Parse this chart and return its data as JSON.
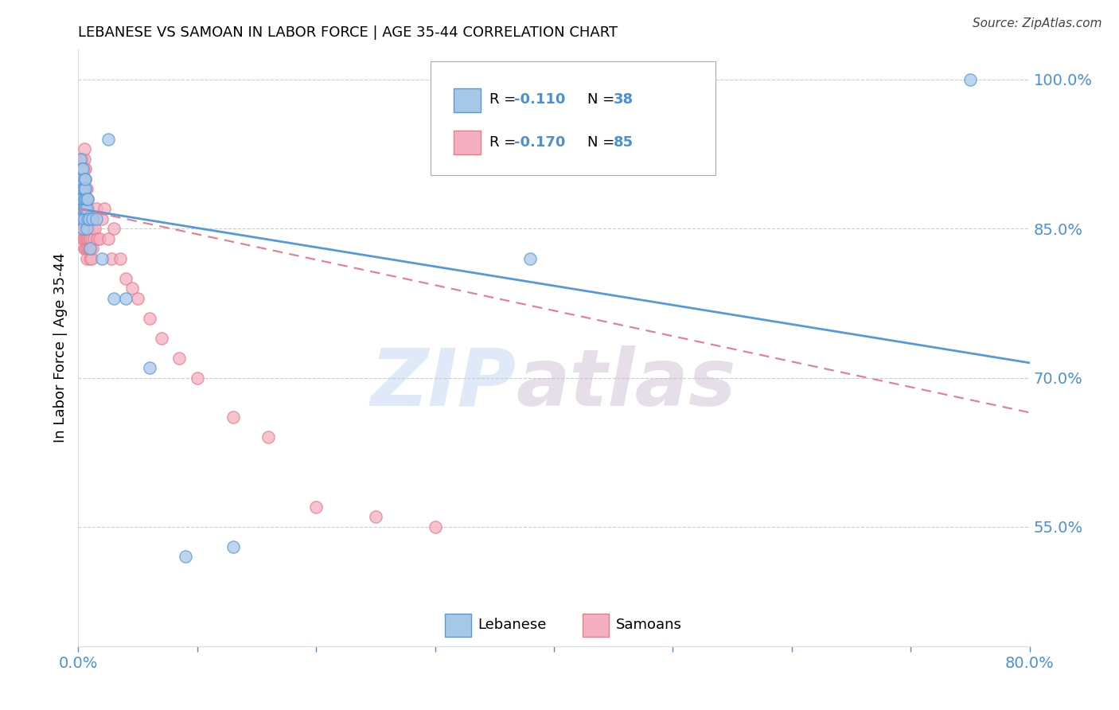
{
  "title": "LEBANESE VS SAMOAN IN LABOR FORCE | AGE 35-44 CORRELATION CHART",
  "source": "Source: ZipAtlas.com",
  "ylabel": "In Labor Force | Age 35-44",
  "xlim": [
    0.0,
    0.8
  ],
  "ylim": [
    0.43,
    1.03
  ],
  "xticks": [
    0.0,
    0.1,
    0.2,
    0.3,
    0.4,
    0.5,
    0.6,
    0.7,
    0.8
  ],
  "ytick_labels_right": [
    "100.0%",
    "85.0%",
    "70.0%",
    "55.0%"
  ],
  "ytick_vals_right": [
    1.0,
    0.85,
    0.7,
    0.55
  ],
  "color_lebanese": "#a8c8e8",
  "color_samoans": "#f4b0c0",
  "color_line_lebanese": "#5599dd",
  "color_line_samoans": "#e87a8a",
  "color_axis": "#4a90d9",
  "color_grid": "#cccccc",
  "watermark_zip": "ZIP",
  "watermark_atlas": "atlas",
  "leb_trend_x0": 0.0,
  "leb_trend_y0": 0.87,
  "leb_trend_x1": 0.8,
  "leb_trend_y1": 0.715,
  "sam_trend_x0": 0.0,
  "sam_trend_y0": 0.87,
  "sam_trend_x1": 0.8,
  "sam_trend_y1": 0.665,
  "lebanese_x": [
    0.002,
    0.002,
    0.002,
    0.003,
    0.003,
    0.003,
    0.003,
    0.004,
    0.004,
    0.004,
    0.004,
    0.005,
    0.005,
    0.005,
    0.005,
    0.005,
    0.006,
    0.006,
    0.006,
    0.006,
    0.007,
    0.007,
    0.007,
    0.008,
    0.008,
    0.009,
    0.01,
    0.012,
    0.015,
    0.02,
    0.025,
    0.03,
    0.04,
    0.06,
    0.09,
    0.13,
    0.38,
    0.75
  ],
  "lebanese_y": [
    0.88,
    0.9,
    0.92,
    0.86,
    0.87,
    0.88,
    0.91,
    0.85,
    0.87,
    0.89,
    0.91,
    0.86,
    0.87,
    0.88,
    0.89,
    0.9,
    0.87,
    0.88,
    0.89,
    0.9,
    0.85,
    0.87,
    0.88,
    0.86,
    0.88,
    0.86,
    0.83,
    0.86,
    0.86,
    0.82,
    0.94,
    0.78,
    0.78,
    0.71,
    0.52,
    0.53,
    0.82,
    1.0
  ],
  "samoans_x": [
    0.002,
    0.002,
    0.002,
    0.002,
    0.003,
    0.003,
    0.003,
    0.003,
    0.003,
    0.003,
    0.003,
    0.004,
    0.004,
    0.004,
    0.004,
    0.004,
    0.004,
    0.004,
    0.004,
    0.005,
    0.005,
    0.005,
    0.005,
    0.005,
    0.005,
    0.005,
    0.005,
    0.005,
    0.005,
    0.005,
    0.006,
    0.006,
    0.006,
    0.006,
    0.006,
    0.006,
    0.006,
    0.006,
    0.006,
    0.007,
    0.007,
    0.007,
    0.007,
    0.007,
    0.007,
    0.007,
    0.007,
    0.008,
    0.008,
    0.008,
    0.008,
    0.008,
    0.008,
    0.009,
    0.009,
    0.009,
    0.009,
    0.01,
    0.01,
    0.01,
    0.011,
    0.011,
    0.012,
    0.012,
    0.013,
    0.014,
    0.015,
    0.016,
    0.018,
    0.02,
    0.022,
    0.025,
    0.028,
    0.03,
    0.035,
    0.04,
    0.045,
    0.05,
    0.06,
    0.07,
    0.085,
    0.1,
    0.13,
    0.16,
    0.2,
    0.25,
    0.3
  ],
  "samoans_y": [
    0.89,
    0.9,
    0.91,
    0.92,
    0.86,
    0.87,
    0.88,
    0.89,
    0.9,
    0.91,
    0.92,
    0.84,
    0.85,
    0.86,
    0.87,
    0.88,
    0.89,
    0.9,
    0.91,
    0.83,
    0.84,
    0.85,
    0.86,
    0.87,
    0.88,
    0.89,
    0.9,
    0.91,
    0.92,
    0.93,
    0.83,
    0.84,
    0.85,
    0.86,
    0.87,
    0.88,
    0.89,
    0.9,
    0.91,
    0.82,
    0.83,
    0.84,
    0.85,
    0.86,
    0.87,
    0.88,
    0.89,
    0.83,
    0.84,
    0.85,
    0.86,
    0.87,
    0.88,
    0.83,
    0.84,
    0.85,
    0.86,
    0.82,
    0.83,
    0.84,
    0.82,
    0.84,
    0.83,
    0.85,
    0.84,
    0.85,
    0.87,
    0.84,
    0.84,
    0.86,
    0.87,
    0.84,
    0.82,
    0.85,
    0.82,
    0.8,
    0.79,
    0.78,
    0.76,
    0.74,
    0.72,
    0.7,
    0.66,
    0.64,
    0.57,
    0.56,
    0.55
  ]
}
